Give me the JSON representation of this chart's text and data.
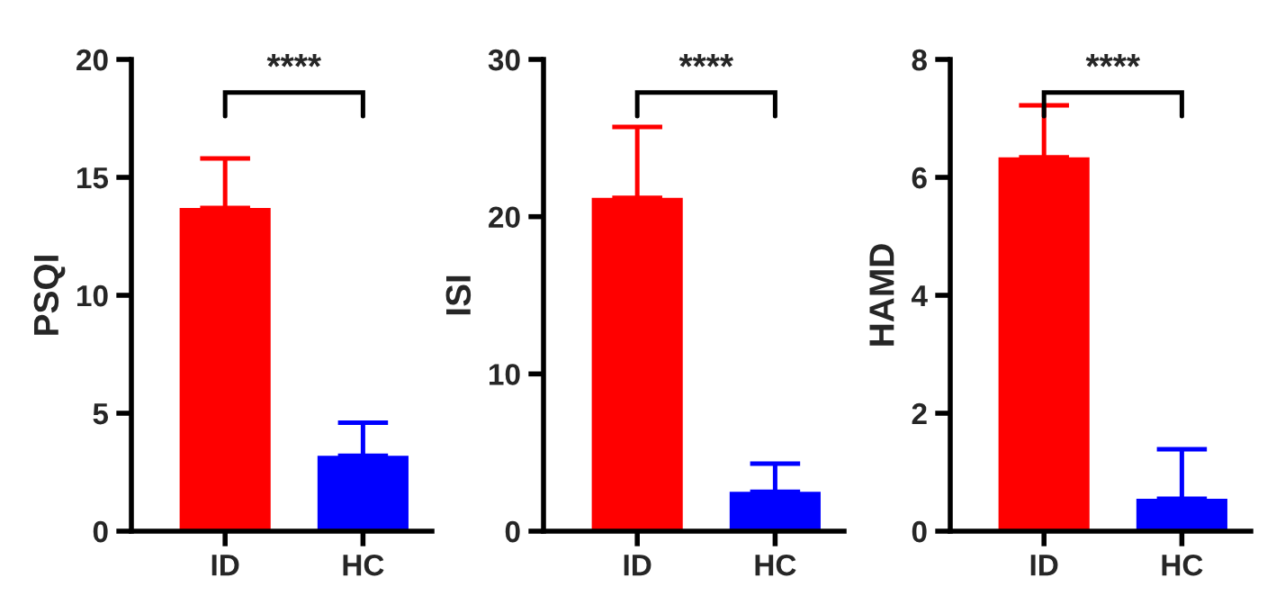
{
  "chart_data": [
    {
      "type": "bar",
      "ylabel": "PSQI",
      "categories": [
        "ID",
        "HC"
      ],
      "values": [
        13.7,
        3.2
      ],
      "colors": [
        "#ff0000",
        "#0000ff"
      ],
      "errors": [
        [
          13.7,
          15.8
        ],
        [
          3.2,
          4.6
        ]
      ],
      "ylim": [
        0,
        20
      ],
      "yticks": [
        0,
        5,
        10,
        15,
        20
      ],
      "annotations": [
        "****"
      ],
      "grid": false
    },
    {
      "type": "bar",
      "ylabel": "ISI",
      "categories": [
        "ID",
        "HC"
      ],
      "values": [
        21.2,
        2.5
      ],
      "colors": [
        "#ff0000",
        "#0000ff"
      ],
      "errors": [
        [
          21.2,
          25.7
        ],
        [
          2.5,
          4.3
        ]
      ],
      "ylim": [
        0,
        30
      ],
      "yticks": [
        0,
        10,
        20,
        30
      ],
      "annotations": [
        "****"
      ],
      "grid": false
    },
    {
      "type": "bar",
      "ylabel": "HAMD",
      "categories": [
        "ID",
        "HC"
      ],
      "values": [
        6.34,
        0.55
      ],
      "colors": [
        "#ff0000",
        "#0000ff"
      ],
      "errors": [
        [
          6.34,
          7.22
        ],
        [
          0.55,
          1.39
        ]
      ],
      "ylim": [
        0,
        8
      ],
      "yticks": [
        0,
        2,
        4,
        6,
        8
      ],
      "annotations": [
        "****"
      ],
      "grid": false
    }
  ]
}
